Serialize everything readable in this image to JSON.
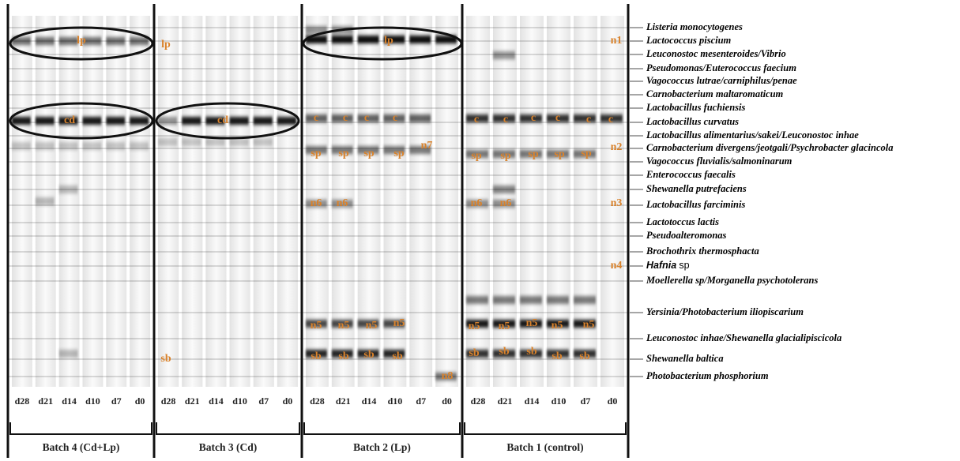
{
  "species": [
    "Listeria monocytogenes",
    "Lactococcus piscium",
    "Leuconostoc mesenteroides/Vibrio",
    "Pseudomonas/Euterococcus faecium",
    "Vagococcus lutrae/carniphilus/penae",
    "Carnobacterium maltaromaticum",
    "Lactobacillus fuchiensis",
    "Lactobacillus curvatus",
    "Lactobacillus alimentarius/sakei/Leuconostoc inhae",
    "Carnobacterium divergens/jeotgali/Psychrobacter glacincola",
    "Vagococcus fluvialis/salmoninarum",
    "Enterococcus faecalis",
    "Shewanella putrefaciens",
    "Lactobacillus farciminis",
    "Lactotoccus lactis",
    "Pseudoalteromonas",
    "Brochothrix thermosphacta",
    {
      "name": "Hafnia",
      "rest": "sp"
    },
    "Moellerella sp/Morganella psychotolerans",
    "Yersinia/Photobacterium iliopiscarium",
    "Leuconostoc inhae/Shewanella glacialipiscicola",
    "Shewanella baltica",
    "Photobacterium phosphorium"
  ],
  "batches": [
    {
      "label": "Batch 4 (Cd+Lp)",
      "lanes": [
        "d28",
        "d21",
        "d14",
        "d10",
        "d7",
        "d0"
      ],
      "band_labels": [
        "lp",
        "cd"
      ]
    },
    {
      "label": "Batch 3 (Cd)",
      "lanes": [
        "d28",
        "d21",
        "d14",
        "d10",
        "d7",
        "d0"
      ],
      "band_labels": [
        "lp",
        "cd",
        "sb"
      ]
    },
    {
      "label": "Batch 2 (Lp)",
      "lanes": [
        "d28",
        "d21",
        "d14",
        "d10",
        "d7",
        "d0"
      ],
      "band_labels": [
        "lp",
        "c",
        "c",
        "c",
        "c",
        "sp",
        "sp",
        "sp",
        "sp",
        "n7",
        "n6",
        "n6",
        "n5",
        "n5",
        "n5",
        "n5",
        "sb",
        "sb",
        "sb",
        "sb",
        "n8"
      ]
    },
    {
      "label": "Batch 1 (control)",
      "lanes": [
        "d28",
        "d21",
        "d14",
        "d10",
        "d7",
        "d0"
      ],
      "band_labels": [
        "n1",
        "c",
        "c",
        "c",
        "c",
        "c",
        "c",
        "n2",
        "sp",
        "sp",
        "sp",
        "sp",
        "sp",
        "n6",
        "n6",
        "n3",
        "n4",
        "n5",
        "n5",
        "n5",
        "n5",
        "n5",
        "sb",
        "sb",
        "sb",
        "sb",
        "sb"
      ]
    }
  ]
}
